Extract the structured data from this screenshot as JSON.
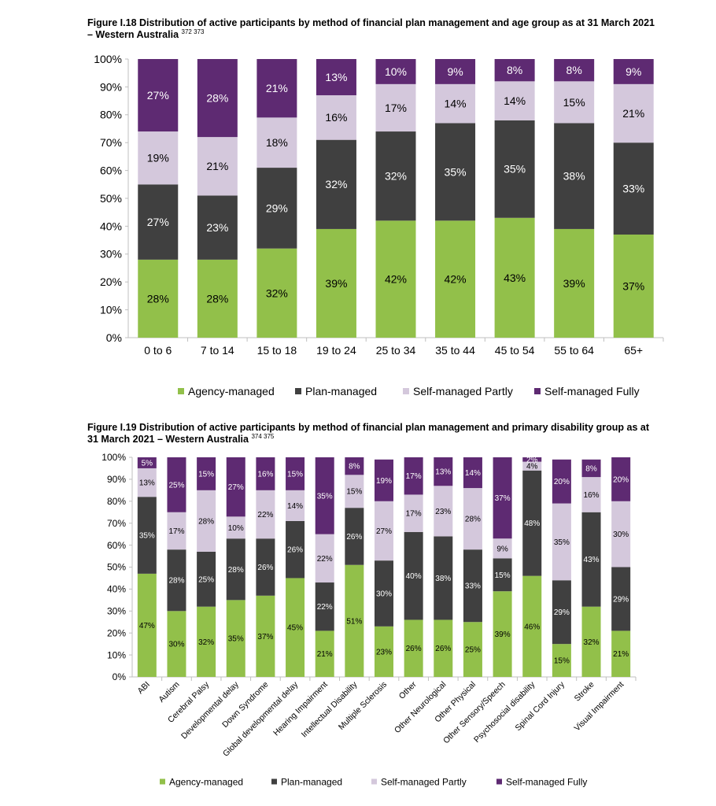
{
  "figures": {
    "fig1": {
      "title": "Figure I.18 Distribution of active participants by method of financial plan management and age group as at 31 March 2021 – Western Australia",
      "refs": "372 373"
    },
    "fig2": {
      "title": "Figure I.19 Distribution of active participants by method of financial plan management and primary disability group as at 31 March 2021 – Western Australia",
      "refs": "374 375"
    }
  },
  "colors": {
    "agency": "#92c04a",
    "plan": "#404040",
    "partly": "#d4c8dc",
    "fully": "#5e2a72",
    "axis": "#bfbfbf"
  },
  "chart_data": [
    {
      "type": "bar",
      "stacked": true,
      "title": "Figure I.18 Distribution of active participants by method of financial plan management and age group as at 31 March 2021 – Western Australia",
      "categories": [
        "0 to 6",
        "7 to 14",
        "15 to 18",
        "19 to 24",
        "25 to 34",
        "35 to 44",
        "45 to 54",
        "55 to 64",
        "65+"
      ],
      "series": [
        {
          "name": "Agency-managed",
          "values": [
            28,
            28,
            32,
            39,
            42,
            42,
            43,
            39,
            37
          ]
        },
        {
          "name": "Plan-managed",
          "values": [
            27,
            23,
            29,
            32,
            32,
            35,
            35,
            38,
            33
          ]
        },
        {
          "name": "Self-managed Partly",
          "values": [
            19,
            21,
            18,
            16,
            17,
            14,
            14,
            15,
            21
          ]
        },
        {
          "name": "Self-managed Fully",
          "values": [
            27,
            28,
            21,
            13,
            10,
            9,
            8,
            8,
            9
          ]
        }
      ],
      "ylim": [
        0,
        100
      ],
      "yticks": [
        "0%",
        "10%",
        "20%",
        "30%",
        "40%",
        "50%",
        "60%",
        "70%",
        "80%",
        "90%",
        "100%"
      ],
      "legend": "bottom",
      "grid": false
    },
    {
      "type": "bar",
      "stacked": true,
      "title": "Figure I.19 Distribution of active participants by method of financial plan management and primary disability group as at 31 March 2021 – Western Australia",
      "categories": [
        "ABI",
        "Autism",
        "Cerebral Palsy",
        "Developmental delay",
        "Down Syndrome",
        "Global developmental delay",
        "Hearing Impairment",
        "Intellectual Disability",
        "Multiple Sclerosis",
        "Other",
        "Other Neurological",
        "Other Physical",
        "Other Sensory/Speech",
        "Psychosocial disability",
        "Spinal Cord Injury",
        "Stroke",
        "Visual Impairment"
      ],
      "series": [
        {
          "name": "Agency-managed",
          "values": [
            47,
            30,
            32,
            35,
            37,
            45,
            21,
            51,
            23,
            26,
            26,
            25,
            39,
            46,
            15,
            32,
            21
          ]
        },
        {
          "name": "Plan-managed",
          "values": [
            35,
            28,
            25,
            28,
            26,
            26,
            22,
            26,
            30,
            40,
            38,
            33,
            15,
            48,
            29,
            43,
            29
          ]
        },
        {
          "name": "Self-managed Partly",
          "values": [
            13,
            17,
            28,
            10,
            22,
            14,
            22,
            15,
            27,
            17,
            23,
            28,
            9,
            4,
            35,
            16,
            30
          ]
        },
        {
          "name": "Self-managed Fully",
          "values": [
            5,
            25,
            15,
            27,
            16,
            15,
            35,
            8,
            19,
            17,
            13,
            14,
            37,
            2,
            20,
            8,
            20
          ]
        }
      ],
      "ylim": [
        0,
        100
      ],
      "yticks": [
        "0%",
        "10%",
        "20%",
        "30%",
        "40%",
        "50%",
        "60%",
        "70%",
        "80%",
        "90%",
        "100%"
      ],
      "legend": "bottom",
      "grid": false
    }
  ]
}
